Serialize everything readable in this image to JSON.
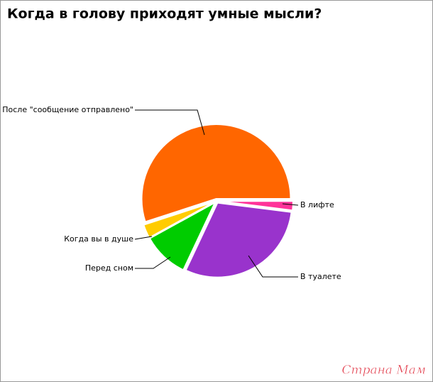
{
  "chart_data": {
    "type": "pie",
    "title": "Когда в голову приходят умные мысли?",
    "categories": [
      "После \"сообщение отправлено\"",
      "Когда вы в душе",
      "Перед сном",
      "В туалете",
      "В лифте"
    ],
    "values": [
      55,
      3,
      10,
      30,
      2
    ],
    "colors": [
      "#ff6600",
      "#ffcc00",
      "#00cc00",
      "#9933cc",
      "#ff3399"
    ]
  },
  "watermark": "Страна Мам"
}
